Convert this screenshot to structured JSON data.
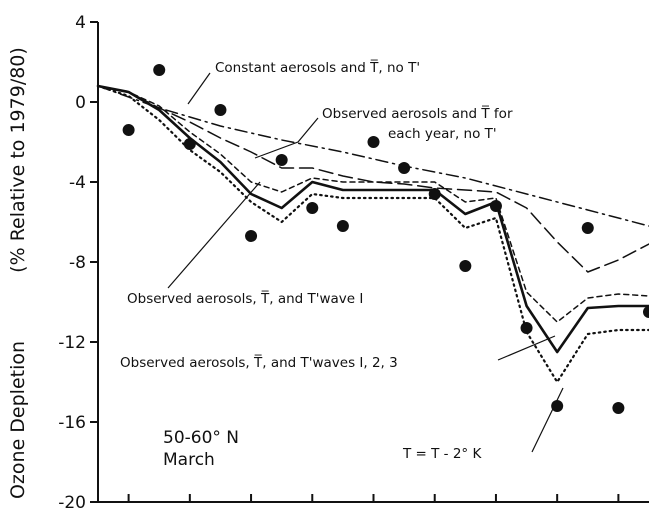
{
  "chart_data": {
    "type": "line",
    "ylabel_left": "Ozone Depletion",
    "ylabel_right": "(% Relative to 1979/80)",
    "ylim": [
      -20,
      4
    ],
    "x_range": [
      1979,
      1997
    ],
    "yticks": [
      4,
      0,
      -4,
      -8,
      -12,
      -16,
      -20
    ],
    "ytick_labels": [
      "4",
      "0",
      "-4",
      "-8",
      "-12",
      "-16",
      "-20"
    ],
    "xticks": [
      1980,
      1982,
      1984,
      1986,
      1988,
      1990,
      1992,
      1994,
      1996
    ],
    "region": {
      "line1": "50-60° N",
      "line2": "March"
    },
    "annotations": [
      {
        "id": "constant",
        "label": "Constant aerosols and T̅, no T'"
      },
      {
        "id": "observed-mean-1",
        "label": "Observed aerosols and T̅ for"
      },
      {
        "id": "observed-mean-2",
        "label": "each year, no T'"
      },
      {
        "id": "wave1",
        "label": "Observed aerosols, T̅, and T'wave I"
      },
      {
        "id": "waves123",
        "label": "Observed aerosols, T̅, and T'waves I, 2, 3"
      },
      {
        "id": "tminus2",
        "label": "T = T - 2° K"
      }
    ],
    "series": [
      {
        "id": "constant",
        "style": "dash-dot",
        "x": [
          1979,
          1981,
          1983,
          1985,
          1987,
          1989,
          1991,
          1993,
          1995,
          1997
        ],
        "values": [
          0.8,
          -0.3,
          -1.2,
          -1.9,
          -2.5,
          -3.2,
          -3.8,
          -4.6,
          -5.4,
          -6.2
        ]
      },
      {
        "id": "observed-mean",
        "style": "long-dash",
        "x": [
          1979,
          1980,
          1981,
          1982,
          1983,
          1984,
          1985,
          1986,
          1987,
          1988,
          1989,
          1990,
          1991,
          1992,
          1993,
          1994,
          1995,
          1996,
          1997
        ],
        "values": [
          0.8,
          0.5,
          -0.3,
          -1.0,
          -1.8,
          -2.5,
          -3.3,
          -3.3,
          -3.7,
          -4.0,
          -4.1,
          -4.3,
          -4.4,
          -4.5,
          -5.3,
          -7.0,
          -8.5,
          -7.9,
          -7.1
        ]
      },
      {
        "id": "wave1",
        "style": "dashed",
        "x": [
          1979,
          1980,
          1981,
          1982,
          1983,
          1984,
          1985,
          1986,
          1987,
          1988,
          1989,
          1990,
          1991,
          1992,
          1993,
          1994,
          1995,
          1996,
          1997
        ],
        "values": [
          0.8,
          0.5,
          -0.2,
          -1.5,
          -2.6,
          -4.0,
          -4.5,
          -3.8,
          -4.0,
          -4.0,
          -4.0,
          -4.0,
          -5.0,
          -4.8,
          -9.5,
          -11.0,
          -9.8,
          -9.6,
          -9.7
        ]
      },
      {
        "id": "waves123",
        "style": "solid",
        "x": [
          1979,
          1980,
          1981,
          1982,
          1983,
          1984,
          1985,
          1986,
          1987,
          1988,
          1989,
          1990,
          1991,
          1992,
          1993,
          1994,
          1995,
          1996,
          1997
        ],
        "values": [
          0.8,
          0.5,
          -0.4,
          -1.8,
          -3.0,
          -4.6,
          -5.3,
          -4.0,
          -4.4,
          -4.4,
          -4.4,
          -4.4,
          -5.6,
          -5.0,
          -10.2,
          -12.5,
          -10.3,
          -10.2,
          -10.2
        ]
      },
      {
        "id": "tminus2",
        "style": "dotted",
        "x": [
          1979,
          1980,
          1981,
          1982,
          1983,
          1984,
          1985,
          1986,
          1987,
          1988,
          1989,
          1990,
          1991,
          1992,
          1993,
          1994,
          1995,
          1996,
          1997
        ],
        "values": [
          0.8,
          0.3,
          -0.9,
          -2.4,
          -3.5,
          -5.0,
          -6.0,
          -4.6,
          -4.8,
          -4.8,
          -4.8,
          -4.8,
          -6.3,
          -5.8,
          -11.5,
          -14.0,
          -11.6,
          -11.4,
          -11.4
        ]
      },
      {
        "id": "observed",
        "style": "points",
        "x": [
          1980,
          1981,
          1982,
          1983,
          1984,
          1985,
          1986,
          1987,
          1988,
          1989,
          1990,
          1991,
          1992,
          1993,
          1994,
          1995,
          1996,
          1997
        ],
        "values": [
          -1.4,
          1.6,
          -2.1,
          -0.4,
          -6.7,
          -2.9,
          -5.3,
          -6.2,
          -2.0,
          -3.3,
          -4.6,
          -8.2,
          -5.2,
          -11.3,
          -15.2,
          -6.3,
          -15.3,
          -10.5
        ]
      }
    ]
  }
}
